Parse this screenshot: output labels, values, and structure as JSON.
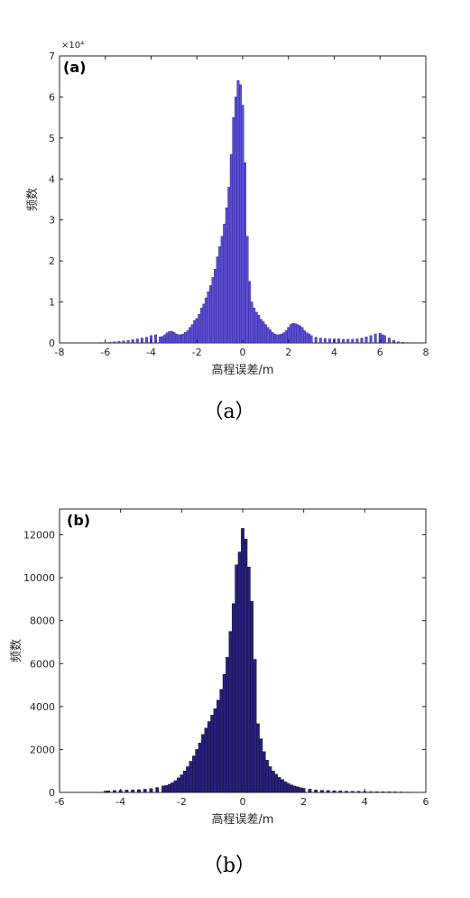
{
  "figure": {
    "panels": [
      {
        "panel_label": "(a)",
        "caption": "（a）",
        "y_exponent": "×10⁴"
      },
      {
        "panel_label": "(b)",
        "caption": "（b）",
        "y_exponent": ""
      }
    ]
  },
  "colors": {
    "bars_a": "#5b4fd6",
    "bars_a_edge": "#2a2080",
    "bars_b": "#2a1f7a",
    "bars_b_edge": "#0d0a30",
    "axis": "#262626"
  },
  "chart_data": [
    {
      "type": "bar",
      "title": "",
      "xlabel": "高程误差/m",
      "ylabel": "频数",
      "xlim": [
        -8,
        8
      ],
      "ylim": [
        0,
        7
      ],
      "y_scale_factor": 10000,
      "xticks": [
        -8,
        -6,
        -4,
        -2,
        0,
        2,
        4,
        6,
        8
      ],
      "yticks": [
        0,
        1,
        2,
        3,
        4,
        5,
        6,
        7
      ],
      "bin_width": 0.1,
      "x": [
        -6.2,
        -6.0,
        -5.8,
        -5.6,
        -5.4,
        -5.2,
        -5.0,
        -4.8,
        -4.6,
        -4.4,
        -4.2,
        -4.0,
        -3.8,
        -3.6,
        -3.5,
        -3.4,
        -3.3,
        -3.2,
        -3.1,
        -3.0,
        -2.9,
        -2.8,
        -2.7,
        -2.6,
        -2.5,
        -2.4,
        -2.3,
        -2.2,
        -2.1,
        -2.0,
        -1.9,
        -1.8,
        -1.7,
        -1.6,
        -1.5,
        -1.4,
        -1.3,
        -1.2,
        -1.1,
        -1.0,
        -0.9,
        -0.8,
        -0.7,
        -0.6,
        -0.5,
        -0.4,
        -0.3,
        -0.2,
        -0.1,
        0.0,
        0.1,
        0.2,
        0.3,
        0.4,
        0.5,
        0.6,
        0.7,
        0.8,
        0.9,
        1.0,
        1.1,
        1.2,
        1.3,
        1.4,
        1.5,
        1.6,
        1.7,
        1.8,
        1.9,
        2.0,
        2.1,
        2.2,
        2.3,
        2.4,
        2.5,
        2.6,
        2.7,
        2.8,
        2.9,
        3.0,
        3.2,
        3.4,
        3.6,
        3.8,
        4.0,
        4.2,
        4.4,
        4.6,
        4.8,
        5.0,
        5.2,
        5.4,
        5.6,
        5.8,
        6.0,
        6.1,
        6.2,
        6.4,
        6.6,
        6.8,
        7.0,
        7.2
      ],
      "values": [
        0.01,
        0.01,
        0.02,
        0.03,
        0.04,
        0.05,
        0.06,
        0.08,
        0.1,
        0.12,
        0.14,
        0.18,
        0.2,
        0.15,
        0.16,
        0.2,
        0.25,
        0.28,
        0.28,
        0.26,
        0.22,
        0.2,
        0.2,
        0.22,
        0.26,
        0.3,
        0.38,
        0.45,
        0.55,
        0.6,
        0.7,
        0.85,
        0.95,
        1.1,
        1.25,
        1.4,
        1.6,
        1.8,
        2.1,
        2.35,
        2.6,
        2.9,
        3.3,
        3.8,
        4.6,
        5.5,
        6.0,
        6.4,
        6.3,
        5.8,
        4.4,
        2.6,
        1.5,
        1.0,
        0.85,
        0.75,
        0.68,
        0.58,
        0.52,
        0.45,
        0.38,
        0.32,
        0.26,
        0.22,
        0.2,
        0.2,
        0.22,
        0.25,
        0.3,
        0.38,
        0.45,
        0.48,
        0.47,
        0.45,
        0.42,
        0.38,
        0.3,
        0.25,
        0.22,
        0.18,
        0.14,
        0.12,
        0.11,
        0.1,
        0.1,
        0.1,
        0.09,
        0.09,
        0.09,
        0.1,
        0.12,
        0.15,
        0.18,
        0.22,
        0.24,
        0.2,
        0.18,
        0.12,
        0.06,
        0.03,
        0.02,
        0.01
      ]
    },
    {
      "type": "bar",
      "title": "",
      "xlabel": "高程误差/m",
      "ylabel": "频数",
      "xlim": [
        -6,
        6
      ],
      "ylim": [
        0,
        13200
      ],
      "xticks": [
        -6,
        -4,
        -2,
        0,
        2,
        4,
        6
      ],
      "yticks": [
        0,
        2000,
        4000,
        6000,
        8000,
        10000,
        12000
      ],
      "bin_width": 0.1,
      "x": [
        -4.5,
        -4.4,
        -4.2,
        -4.0,
        -3.8,
        -3.6,
        -3.4,
        -3.2,
        -3.0,
        -2.8,
        -2.6,
        -2.5,
        -2.4,
        -2.3,
        -2.2,
        -2.1,
        -2.0,
        -1.9,
        -1.8,
        -1.7,
        -1.6,
        -1.5,
        -1.4,
        -1.3,
        -1.2,
        -1.1,
        -1.0,
        -0.9,
        -0.8,
        -0.7,
        -0.6,
        -0.5,
        -0.4,
        -0.3,
        -0.2,
        -0.1,
        0.0,
        0.1,
        0.2,
        0.3,
        0.4,
        0.5,
        0.6,
        0.7,
        0.8,
        0.9,
        1.0,
        1.1,
        1.2,
        1.3,
        1.4,
        1.5,
        1.6,
        1.7,
        1.8,
        1.9,
        2.0,
        2.2,
        2.4,
        2.6,
        2.8,
        3.0,
        3.2,
        3.4,
        3.6,
        3.8,
        4.0,
        4.2,
        4.4,
        4.6,
        4.8,
        5.0,
        5.2,
        5.4,
        5.5
      ],
      "values": [
        60,
        80,
        90,
        100,
        110,
        120,
        130,
        150,
        180,
        230,
        300,
        330,
        380,
        450,
        550,
        680,
        820,
        1000,
        1200,
        1450,
        1700,
        2000,
        2300,
        2700,
        3000,
        3300,
        3600,
        3900,
        4300,
        4800,
        5500,
        6300,
        7500,
        8800,
        10600,
        11200,
        12300,
        11800,
        10500,
        8900,
        6200,
        3200,
        2500,
        1900,
        1500,
        1200,
        1000,
        850,
        700,
        600,
        500,
        420,
        350,
        300,
        260,
        220,
        190,
        150,
        120,
        100,
        90,
        80,
        70,
        60,
        55,
        50,
        45,
        40,
        35,
        30,
        28,
        25,
        20,
        15,
        10
      ]
    }
  ]
}
